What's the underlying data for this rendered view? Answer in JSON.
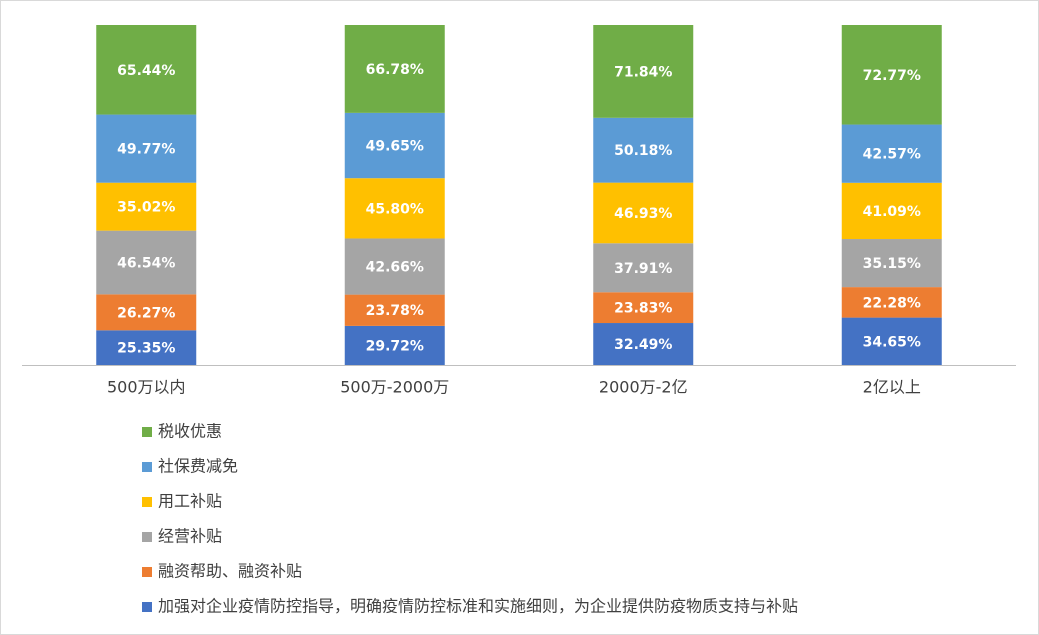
{
  "chart_data": {
    "type": "bar",
    "stacked": true,
    "normalize": true,
    "categories": [
      "500万以内",
      "500万-2000万",
      "2000万-2亿",
      "2亿以上"
    ],
    "series": [
      {
        "name": "税收优惠",
        "color": "#70ad47",
        "values": [
          65.44,
          66.78,
          71.84,
          72.77
        ],
        "value_labels": [
          "65.44%",
          "66.78%",
          "71.84%",
          "72.77%"
        ]
      },
      {
        "name": "社保费减免",
        "color": "#5b9bd5",
        "values": [
          49.77,
          49.65,
          50.18,
          42.57
        ],
        "value_labels": [
          "49.77%",
          "49.65%",
          "50.18%",
          "42.57%"
        ]
      },
      {
        "name": "用工补贴",
        "color": "#ffc000",
        "values": [
          35.02,
          45.8,
          46.93,
          41.09
        ],
        "value_labels": [
          "35.02%",
          "45.80%",
          "46.93%",
          "41.09%"
        ]
      },
      {
        "name": "经营补贴",
        "color": "#a5a5a5",
        "values": [
          46.54,
          42.66,
          37.91,
          35.15
        ],
        "value_labels": [
          "46.54%",
          "42.66%",
          "37.91%",
          "35.15%"
        ]
      },
      {
        "name": "融资帮助、融资补贴",
        "color": "#ed7d31",
        "values": [
          26.27,
          23.78,
          23.83,
          22.28
        ],
        "value_labels": [
          "26.27%",
          "23.78%",
          "23.83%",
          "22.28%"
        ]
      },
      {
        "name": "加强对企业疫情防控指导，明确疫情防控标准和实施细则，为企业提供防疫物质支持与补贴",
        "color": "#4472c4",
        "values": [
          25.35,
          29.72,
          32.49,
          34.65
        ],
        "value_labels": [
          "25.35%",
          "29.72%",
          "32.49%",
          "34.65%"
        ]
      }
    ],
    "legend": "bottom-left"
  }
}
